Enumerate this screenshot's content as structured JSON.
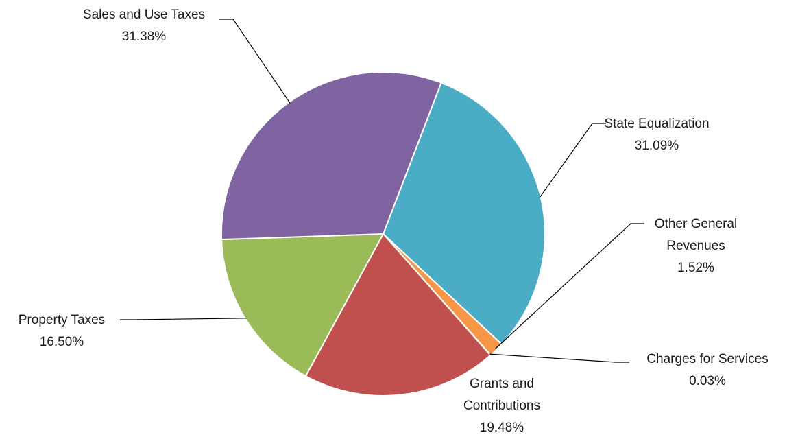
{
  "chart_data": {
    "type": "pie",
    "title": "",
    "start_angle_deg": 21,
    "direction": "clockwise",
    "slices": [
      {
        "label_lines": [
          "State Equalization"
        ],
        "value_text": "31.09%",
        "value": 31.09,
        "color": "#4BACC6"
      },
      {
        "label_lines": [
          "Other General",
          "Revenues"
        ],
        "value_text": "1.52%",
        "value": 1.52,
        "color": "#F79646"
      },
      {
        "label_lines": [
          "Charges for Services"
        ],
        "value_text": "0.03%",
        "value": 0.03,
        "color": "#2C4D75"
      },
      {
        "label_lines": [
          "Grants and",
          "Contributions"
        ],
        "value_text": "19.48%",
        "value": 19.48,
        "color": "#C0504D"
      },
      {
        "label_lines": [
          "Property Taxes"
        ],
        "value_text": "16.50%",
        "value": 16.5,
        "color": "#9BBB59"
      },
      {
        "label_lines": [
          "Sales and Use Taxes"
        ],
        "value_text": "31.38%",
        "value": 31.38,
        "color": "#8064A2"
      }
    ]
  }
}
